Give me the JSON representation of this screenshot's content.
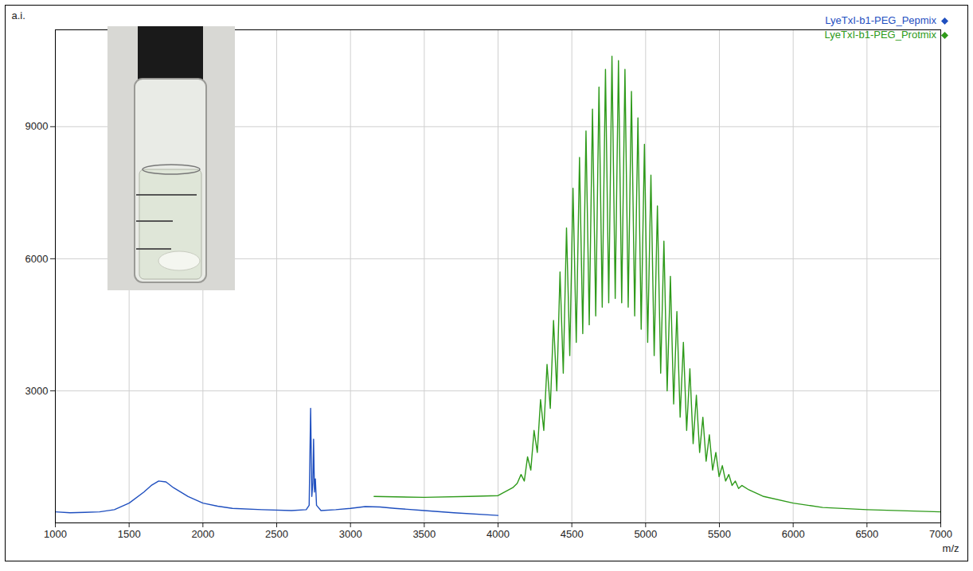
{
  "chart_data": {
    "type": "line",
    "x_label": "m/z",
    "y_label": "a.i.",
    "xlim": [
      1000,
      7000
    ],
    "xticks": [
      1000,
      1500,
      2000,
      2500,
      3000,
      3500,
      4000,
      4500,
      5000,
      5500,
      6000,
      6500,
      7000
    ],
    "ylim": [
      0,
      11200
    ],
    "yticks": [
      3000,
      6000,
      9000
    ],
    "grid": true,
    "legend": "top-right",
    "series": [
      {
        "name": "LyeTxI-b1-PEG_Pepmix",
        "color": "#1f4fbf",
        "x": [
          1000,
          1100,
          1200,
          1300,
          1400,
          1500,
          1600,
          1650,
          1700,
          1750,
          1800,
          1900,
          2000,
          2100,
          2200,
          2400,
          2600,
          2700,
          2720,
          2730,
          2738,
          2745,
          2750,
          2756,
          2762,
          2770,
          2800,
          2900,
          3000,
          3100,
          3200,
          3300,
          3500,
          3700,
          4000
        ],
        "values": [
          250,
          230,
          240,
          250,
          300,
          450,
          700,
          850,
          950,
          930,
          800,
          600,
          450,
          380,
          330,
          300,
          280,
          300,
          400,
          2600,
          600,
          900,
          1900,
          700,
          1000,
          400,
          280,
          300,
          330,
          370,
          360,
          330,
          280,
          230,
          170
        ]
      },
      {
        "name": "LyeTxI-b1-PEG_Protmix",
        "color": "#2e9a1a",
        "x": [
          3160,
          3500,
          3800,
          4000,
          4100,
          4130,
          4156,
          4178,
          4200,
          4222,
          4244,
          4266,
          4288,
          4310,
          4332,
          4354,
          4376,
          4398,
          4420,
          4442,
          4464,
          4486,
          4508,
          4530,
          4552,
          4574,
          4596,
          4618,
          4640,
          4662,
          4684,
          4706,
          4728,
          4750,
          4772,
          4794,
          4816,
          4838,
          4860,
          4882,
          4904,
          4926,
          4948,
          4970,
          4992,
          5014,
          5036,
          5058,
          5080,
          5102,
          5124,
          5146,
          5168,
          5190,
          5212,
          5234,
          5256,
          5278,
          5300,
          5322,
          5344,
          5366,
          5388,
          5410,
          5432,
          5454,
          5476,
          5498,
          5520,
          5542,
          5564,
          5586,
          5608,
          5630,
          5652,
          5700,
          5800,
          6000,
          6200,
          6500,
          7000
        ],
        "values": [
          600,
          580,
          600,
          620,
          800,
          900,
          1100,
          950,
          1500,
          1200,
          2100,
          1600,
          2800,
          2100,
          3600,
          2600,
          4600,
          3000,
          5700,
          3400,
          6700,
          3800,
          7600,
          4100,
          8300,
          4300,
          8900,
          4500,
          9400,
          4700,
          9900,
          4900,
          10300,
          5000,
          10600,
          5100,
          10500,
          5000,
          10300,
          4900,
          9800,
          4700,
          9200,
          4400,
          8600,
          4100,
          7900,
          3800,
          7200,
          3400,
          6400,
          3000,
          5600,
          2700,
          4800,
          2400,
          4100,
          2100,
          3500,
          1800,
          2900,
          1600,
          2400,
          1400,
          2000,
          1200,
          1600,
          1050,
          1300,
          950,
          1100,
          850,
          950,
          780,
          850,
          750,
          600,
          450,
          350,
          300,
          250
        ]
      }
    ]
  }
}
